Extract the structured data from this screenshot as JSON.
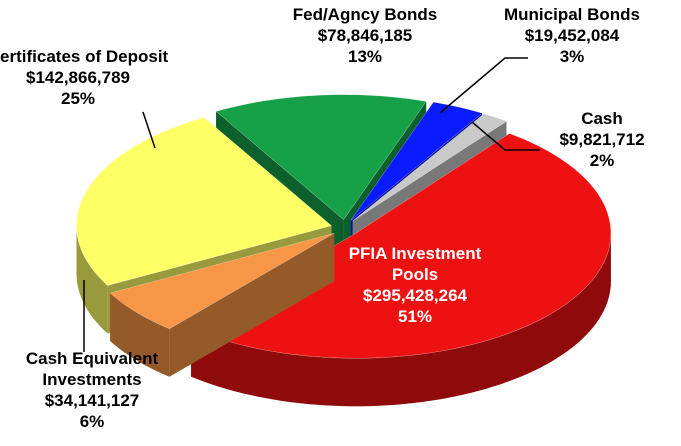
{
  "chart_data": {
    "type": "pie",
    "categories": [
      "Fed/Agncy Bonds",
      "Municipal Bonds",
      "Cash",
      "PFIA Investment Pools",
      "Cash Equivalent Investments",
      "Certificates of Deposit"
    ],
    "values": [
      78846185,
      19452084,
      9821712,
      295428264,
      34141127,
      142866789
    ],
    "value_labels": [
      "$78,846,185",
      "$19,452,084",
      "$9,821,712",
      "$295,428,264",
      "$34,141,127",
      "$142,866,789"
    ],
    "percent_labels": [
      "13%",
      "3%",
      "2%",
      "51%",
      "6%",
      "25%"
    ],
    "colors": [
      "#16a048",
      "#0a1cff",
      "#c9c9c9",
      "#ee1111",
      "#f79646",
      "#ffff66"
    ]
  }
}
